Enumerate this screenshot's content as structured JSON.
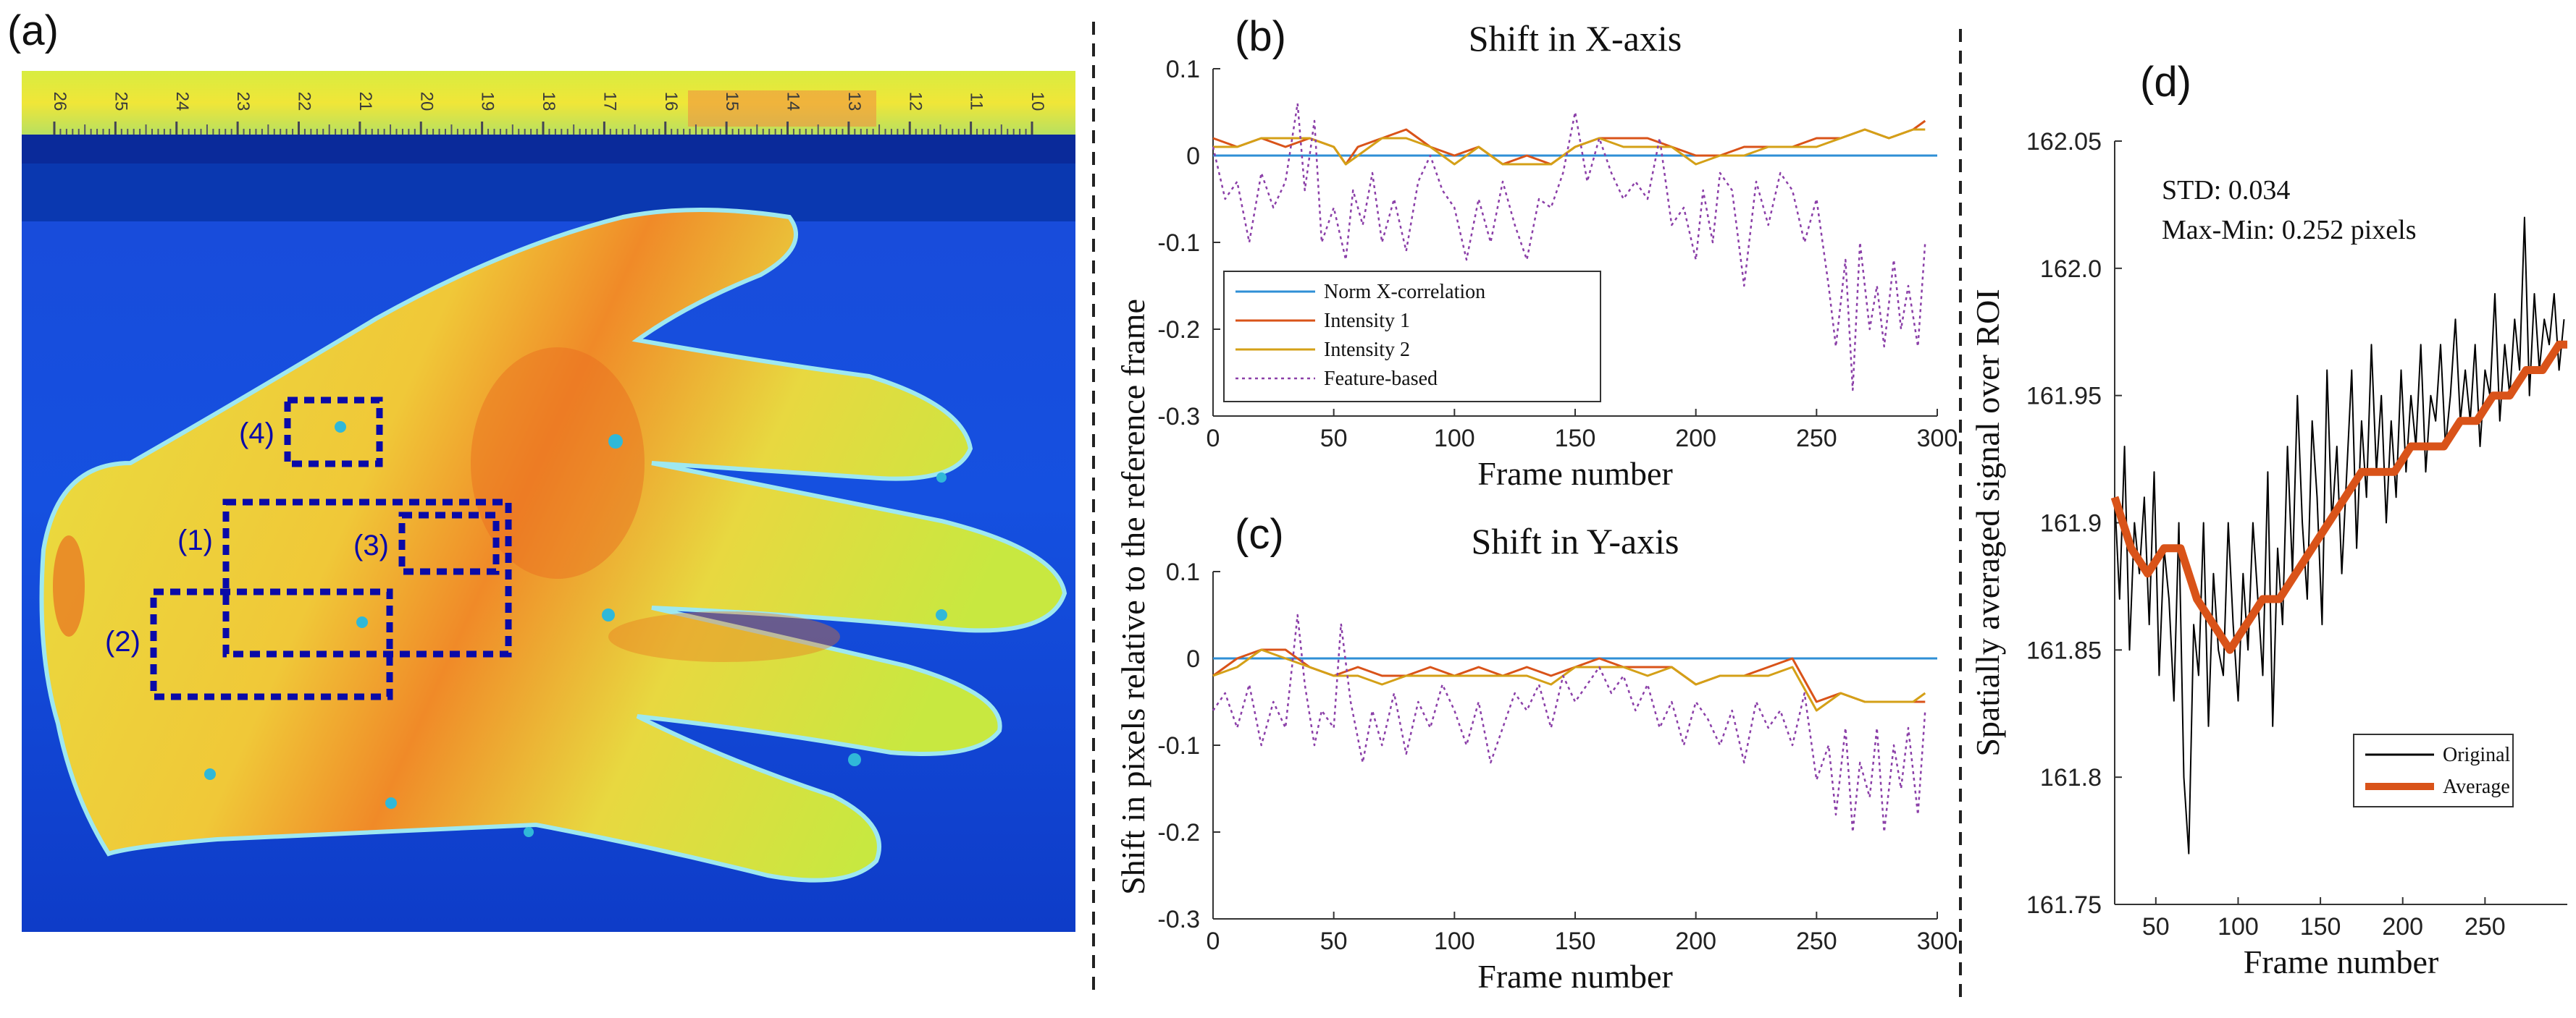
{
  "panel_labels": {
    "a": "(a)",
    "b": "(b)",
    "c": "(c)",
    "d": "(d)"
  },
  "image_panel": {
    "ruler_numbers": [
      "26",
      "25",
      "24",
      "23",
      "22",
      "21",
      "20",
      "19",
      "18",
      "17",
      "16",
      "15",
      "14",
      "13",
      "12",
      "11",
      "10"
    ],
    "roi_labels": [
      "(1)",
      "(2)",
      "(3)",
      "(4)"
    ]
  },
  "shared_ylabel": "Shift in pixels relative to the reference frame",
  "colors": {
    "norm": "#2f8fd6",
    "intensity1": "#d95319",
    "intensity2": "#d4a017",
    "feature": "#8b3fa8",
    "original": "#000000",
    "average": "#d95319",
    "roi": "#0a0aa8"
  },
  "chart_data": [
    {
      "id": "b",
      "type": "line",
      "title": "Shift in X-axis",
      "xlabel": "Frame number",
      "ylabel": "Shift in pixels relative to the reference frame",
      "xlim": [
        0,
        300
      ],
      "ylim": [
        -0.3,
        0.1
      ],
      "xticks": [
        0,
        50,
        100,
        150,
        200,
        250,
        300
      ],
      "yticks": [
        0.1,
        0,
        -0.1,
        -0.2,
        -0.3
      ],
      "legend_position": "bottom-left",
      "series": [
        {
          "name": "Norm X-correlation",
          "style": "solid",
          "x": [
            0,
            300
          ],
          "values": [
            0,
            0
          ]
        },
        {
          "name": "Intensity 1",
          "style": "solid",
          "x": [
            0,
            10,
            20,
            30,
            40,
            50,
            55,
            60,
            70,
            80,
            90,
            100,
            110,
            120,
            130,
            140,
            150,
            160,
            170,
            180,
            190,
            200,
            210,
            220,
            230,
            240,
            250,
            260,
            270,
            280,
            290,
            295
          ],
          "values": [
            0.02,
            0.01,
            0.02,
            0.01,
            0.02,
            0.01,
            -0.01,
            0.01,
            0.02,
            0.03,
            0.01,
            0,
            0.01,
            -0.01,
            0,
            -0.01,
            0.01,
            0.02,
            0.02,
            0.02,
            0.01,
            0,
            0,
            0.01,
            0.01,
            0.01,
            0.02,
            0.02,
            0.03,
            0.02,
            0.03,
            0.04
          ]
        },
        {
          "name": "Intensity 2",
          "style": "solid",
          "x": [
            0,
            10,
            20,
            30,
            40,
            50,
            55,
            60,
            70,
            80,
            90,
            100,
            110,
            120,
            130,
            140,
            150,
            160,
            170,
            180,
            190,
            200,
            210,
            220,
            230,
            240,
            250,
            260,
            270,
            280,
            290,
            295
          ],
          "values": [
            0.01,
            0.01,
            0.02,
            0.02,
            0.02,
            0.01,
            -0.01,
            0,
            0.02,
            0.02,
            0.01,
            -0.01,
            0.01,
            -0.01,
            -0.01,
            -0.01,
            0.01,
            0.02,
            0.01,
            0.01,
            0.01,
            -0.01,
            0,
            0,
            0.01,
            0.01,
            0.01,
            0.02,
            0.03,
            0.02,
            0.03,
            0.03
          ]
        },
        {
          "name": "Feature-based",
          "style": "dotted",
          "x": [
            0,
            5,
            10,
            15,
            20,
            25,
            30,
            35,
            38,
            42,
            45,
            50,
            55,
            58,
            62,
            66,
            70,
            75,
            80,
            85,
            90,
            95,
            100,
            105,
            110,
            115,
            120,
            125,
            130,
            135,
            140,
            145,
            150,
            155,
            160,
            165,
            170,
            175,
            180,
            185,
            190,
            195,
            200,
            203,
            207,
            210,
            215,
            220,
            225,
            230,
            235,
            240,
            245,
            250,
            255,
            258,
            262,
            265,
            268,
            272,
            275,
            278,
            282,
            285,
            288,
            292,
            295
          ],
          "values": [
            0.01,
            -0.05,
            -0.03,
            -0.1,
            -0.02,
            -0.06,
            -0.03,
            0.06,
            -0.04,
            0.04,
            -0.1,
            -0.06,
            -0.12,
            -0.04,
            -0.08,
            -0.02,
            -0.1,
            -0.05,
            -0.11,
            -0.03,
            0,
            -0.04,
            -0.06,
            -0.12,
            -0.05,
            -0.1,
            -0.03,
            -0.08,
            -0.12,
            -0.05,
            -0.06,
            -0.02,
            0.05,
            -0.03,
            0.02,
            -0.02,
            -0.05,
            -0.03,
            -0.05,
            0.02,
            -0.08,
            -0.06,
            -0.12,
            -0.04,
            -0.1,
            -0.02,
            -0.04,
            -0.15,
            -0.03,
            -0.08,
            -0.02,
            -0.04,
            -0.1,
            -0.05,
            -0.15,
            -0.22,
            -0.12,
            -0.27,
            -0.1,
            -0.2,
            -0.15,
            -0.22,
            -0.12,
            -0.2,
            -0.15,
            -0.22,
            -0.1
          ]
        }
      ]
    },
    {
      "id": "c",
      "type": "line",
      "title": "Shift in Y-axis",
      "xlabel": "Frame number",
      "ylabel": "Shift in pixels relative to the reference frame",
      "xlim": [
        0,
        300
      ],
      "ylim": [
        -0.3,
        0.1
      ],
      "xticks": [
        0,
        50,
        100,
        150,
        200,
        250,
        300
      ],
      "yticks": [
        0.1,
        0,
        -0.1,
        -0.2,
        -0.3
      ],
      "series": [
        {
          "name": "Norm X-correlation",
          "style": "solid",
          "x": [
            0,
            300
          ],
          "values": [
            0,
            0
          ]
        },
        {
          "name": "Intensity 1",
          "style": "solid",
          "x": [
            0,
            10,
            20,
            30,
            40,
            50,
            60,
            70,
            80,
            90,
            100,
            110,
            120,
            130,
            140,
            150,
            160,
            170,
            180,
            190,
            200,
            210,
            220,
            230,
            240,
            250,
            260,
            270,
            280,
            290,
            295
          ],
          "values": [
            -0.02,
            0,
            0.01,
            0.01,
            -0.01,
            -0.02,
            -0.01,
            -0.02,
            -0.02,
            -0.01,
            -0.02,
            -0.01,
            -0.02,
            -0.01,
            -0.02,
            -0.01,
            0,
            -0.01,
            -0.01,
            -0.01,
            -0.03,
            -0.02,
            -0.02,
            -0.01,
            0,
            -0.05,
            -0.04,
            -0.05,
            -0.05,
            -0.05,
            -0.05
          ]
        },
        {
          "name": "Intensity 2",
          "style": "solid",
          "x": [
            0,
            10,
            20,
            30,
            40,
            50,
            60,
            70,
            80,
            90,
            100,
            110,
            120,
            130,
            140,
            150,
            160,
            170,
            180,
            190,
            200,
            210,
            220,
            230,
            240,
            250,
            260,
            270,
            280,
            290,
            295
          ],
          "values": [
            -0.02,
            -0.01,
            0.01,
            0,
            -0.01,
            -0.02,
            -0.02,
            -0.03,
            -0.02,
            -0.02,
            -0.02,
            -0.02,
            -0.02,
            -0.02,
            -0.03,
            -0.01,
            -0.01,
            -0.01,
            -0.02,
            -0.01,
            -0.03,
            -0.02,
            -0.02,
            -0.02,
            -0.01,
            -0.06,
            -0.04,
            -0.05,
            -0.05,
            -0.05,
            -0.04
          ]
        },
        {
          "name": "Feature-based",
          "style": "dotted",
          "x": [
            0,
            5,
            10,
            15,
            20,
            25,
            30,
            35,
            38,
            42,
            45,
            50,
            53,
            57,
            62,
            66,
            70,
            75,
            80,
            85,
            90,
            95,
            100,
            105,
            110,
            115,
            120,
            125,
            130,
            135,
            140,
            145,
            150,
            155,
            160,
            165,
            170,
            175,
            180,
            185,
            190,
            195,
            200,
            205,
            210,
            215,
            220,
            225,
            230,
            235,
            240,
            245,
            250,
            255,
            258,
            262,
            265,
            268,
            272,
            275,
            278,
            282,
            285,
            288,
            292,
            295
          ],
          "values": [
            -0.06,
            -0.04,
            -0.08,
            -0.03,
            -0.1,
            -0.05,
            -0.08,
            0.05,
            -0.03,
            -0.1,
            -0.06,
            -0.08,
            0.04,
            -0.05,
            -0.12,
            -0.06,
            -0.1,
            -0.04,
            -0.11,
            -0.05,
            -0.08,
            -0.03,
            -0.06,
            -0.1,
            -0.05,
            -0.12,
            -0.08,
            -0.04,
            -0.06,
            -0.03,
            -0.08,
            -0.02,
            -0.05,
            -0.03,
            -0.01,
            -0.04,
            -0.02,
            -0.06,
            -0.03,
            -0.08,
            -0.05,
            -0.1,
            -0.05,
            -0.07,
            -0.1,
            -0.06,
            -0.12,
            -0.05,
            -0.08,
            -0.06,
            -0.1,
            -0.04,
            -0.14,
            -0.1,
            -0.18,
            -0.08,
            -0.2,
            -0.12,
            -0.16,
            -0.08,
            -0.2,
            -0.1,
            -0.15,
            -0.08,
            -0.18,
            -0.06
          ]
        }
      ]
    },
    {
      "id": "d",
      "type": "line",
      "title": "",
      "xlabel": "Frame number",
      "ylabel": "Spatially averaged signal over ROI",
      "xlim": [
        25,
        300
      ],
      "ylim": [
        161.75,
        162.05
      ],
      "xticks": [
        50,
        100,
        150,
        200,
        250
      ],
      "yticks": [
        162.05,
        162,
        161.95,
        161.9,
        161.85,
        161.8,
        161.75
      ],
      "annotations": [
        "STD: 0.034",
        "Max-Min: 0.252 pixels"
      ],
      "legend_position": "bottom-right",
      "series": [
        {
          "name": "Original",
          "style": "thin",
          "x": [
            25,
            28,
            31,
            34,
            37,
            40,
            43,
            46,
            49,
            52,
            55,
            58,
            61,
            64,
            67,
            70,
            73,
            76,
            79,
            82,
            85,
            88,
            91,
            94,
            97,
            100,
            103,
            106,
            109,
            112,
            115,
            118,
            121,
            124,
            127,
            130,
            133,
            136,
            139,
            142,
            145,
            148,
            151,
            154,
            157,
            160,
            163,
            166,
            169,
            172,
            175,
            178,
            181,
            184,
            187,
            190,
            193,
            196,
            199,
            202,
            205,
            208,
            211,
            214,
            217,
            220,
            223,
            226,
            229,
            232,
            235,
            238,
            241,
            244,
            247,
            250,
            253,
            256,
            259,
            262,
            265,
            268,
            271,
            274,
            277,
            280,
            283,
            286,
            289,
            292,
            295,
            298
          ],
          "values": [
            161.91,
            161.87,
            161.93,
            161.85,
            161.9,
            161.88,
            161.91,
            161.86,
            161.92,
            161.84,
            161.89,
            161.87,
            161.83,
            161.9,
            161.8,
            161.77,
            161.86,
            161.84,
            161.9,
            161.82,
            161.88,
            161.85,
            161.84,
            161.9,
            161.86,
            161.83,
            161.88,
            161.85,
            161.9,
            161.87,
            161.84,
            161.92,
            161.82,
            161.89,
            161.86,
            161.93,
            161.88,
            161.95,
            161.9,
            161.87,
            161.94,
            161.91,
            161.86,
            161.96,
            161.9,
            161.93,
            161.88,
            161.92,
            161.96,
            161.89,
            161.94,
            161.91,
            161.97,
            161.92,
            161.95,
            161.9,
            161.94,
            161.91,
            161.96,
            161.92,
            161.95,
            161.93,
            161.97,
            161.92,
            161.95,
            161.94,
            161.97,
            161.93,
            161.95,
            161.98,
            161.94,
            161.96,
            161.94,
            161.97,
            161.93,
            161.96,
            161.95,
            161.99,
            161.94,
            161.97,
            161.95,
            161.98,
            161.96,
            162.02,
            161.95,
            161.99,
            161.96,
            161.98,
            161.97,
            161.99,
            161.96,
            161.98
          ]
        },
        {
          "name": "Average",
          "style": "thick",
          "x": [
            25,
            35,
            45,
            55,
            65,
            75,
            85,
            95,
            105,
            115,
            125,
            135,
            145,
            155,
            165,
            175,
            185,
            195,
            205,
            215,
            225,
            235,
            245,
            255,
            265,
            275,
            285,
            295,
            300
          ],
          "values": [
            161.91,
            161.89,
            161.88,
            161.89,
            161.89,
            161.87,
            161.86,
            161.85,
            161.86,
            161.87,
            161.87,
            161.88,
            161.89,
            161.9,
            161.91,
            161.92,
            161.92,
            161.92,
            161.93,
            161.93,
            161.93,
            161.94,
            161.94,
            161.95,
            161.95,
            161.96,
            161.96,
            161.97,
            161.97
          ]
        }
      ]
    }
  ]
}
